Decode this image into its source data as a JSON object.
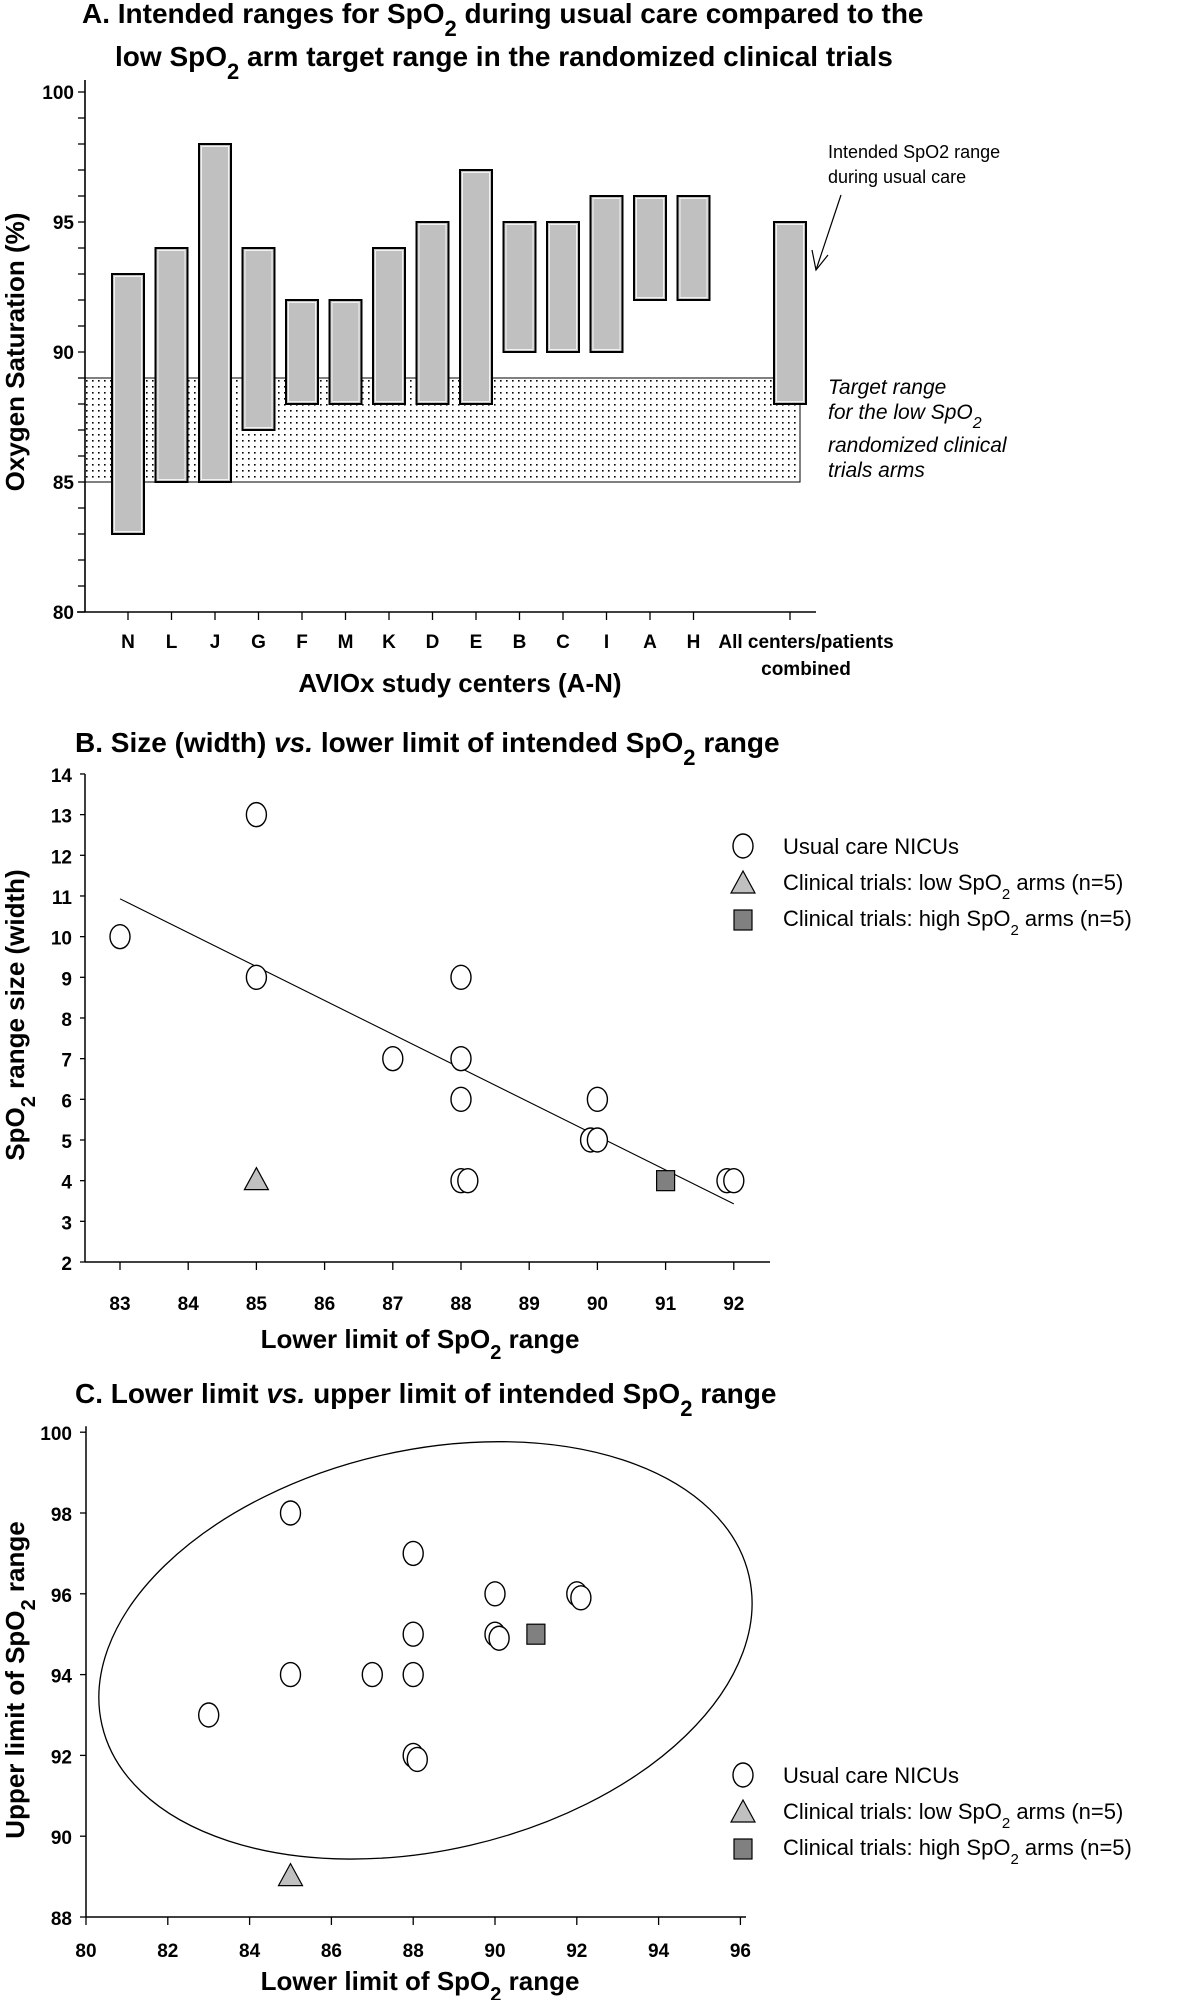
{
  "chart_data": [
    {
      "type": "bar",
      "subtype": "floating-range",
      "title_line1": "A. Intended ranges for SpO2 during usual care compared to the",
      "title_line2": "low SpO2 arm target range in the randomized clinical trials",
      "xlabel": "AVIOx study centers (A-N)",
      "ylabel": "Oxygen Saturation (%)",
      "ylim": [
        80,
        100
      ],
      "yticks_major": [
        80,
        85,
        90,
        95,
        100
      ],
      "yticks_minor_step": 1,
      "categories": [
        "N",
        "L",
        "J",
        "G",
        "F",
        "M",
        "K",
        "D",
        "E",
        "B",
        "C",
        "I",
        "A",
        "H",
        "All centers/patients combined"
      ],
      "category_label_last_line1": "All centers/patients",
      "category_label_last_line2": "combined",
      "ranges": [
        {
          "center": "N",
          "low": 83,
          "high": 93
        },
        {
          "center": "L",
          "low": 85,
          "high": 94
        },
        {
          "center": "J",
          "low": 85,
          "high": 98
        },
        {
          "center": "G",
          "low": 87,
          "high": 94
        },
        {
          "center": "F",
          "low": 88,
          "high": 92
        },
        {
          "center": "M",
          "low": 88,
          "high": 92
        },
        {
          "center": "K",
          "low": 88,
          "high": 94
        },
        {
          "center": "D",
          "low": 88,
          "high": 95
        },
        {
          "center": "E",
          "low": 88,
          "high": 97
        },
        {
          "center": "B",
          "low": 90,
          "high": 95
        },
        {
          "center": "C",
          "low": 90,
          "high": 95
        },
        {
          "center": "I",
          "low": 90,
          "high": 96
        },
        {
          "center": "A",
          "low": 92,
          "high": 96
        },
        {
          "center": "H",
          "low": 92,
          "high": 96
        },
        {
          "center": "All centers/patients combined",
          "low": 88,
          "high": 95
        }
      ],
      "target_band": {
        "low": 85,
        "high": 89
      },
      "annotations": {
        "usual_care_line1": "Intended SpO2 range",
        "usual_care_line2": "during usual care",
        "target_line1": "Target range",
        "target_line2": "for the low SpO2",
        "target_line3": "randomized clinical",
        "target_line4": "trials arms"
      },
      "colors": {
        "bar_fill": "#c0c0c0",
        "bar_stroke": "#000000"
      }
    },
    {
      "type": "scatter",
      "title": "B. Size (width) vs. lower limit of intended SpO2 range",
      "title_parts": [
        "B. Size (width) ",
        "vs.",
        " lower limit of intended SpO",
        "2",
        " range"
      ],
      "xlabel": "Lower limit of SpO2 range",
      "ylabel": "SpO2 range size (width)",
      "xlim": [
        82.5,
        93.1
      ],
      "ylim": [
        2,
        14
      ],
      "xticks": [
        83,
        84,
        85,
        86,
        87,
        88,
        89,
        90,
        91,
        92
      ],
      "yticks": [
        2,
        3,
        4,
        5,
        6,
        7,
        8,
        9,
        10,
        11,
        12,
        13,
        14
      ],
      "series": [
        {
          "name": "Usual care NICUs",
          "marker": "circle",
          "points": [
            [
              83,
              10
            ],
            [
              85,
              13
            ],
            [
              85,
              9
            ],
            [
              87,
              7
            ],
            [
              88,
              9
            ],
            [
              88,
              7
            ],
            [
              88,
              6
            ],
            [
              88,
              4
            ],
            [
              88.1,
              4
            ],
            [
              89.9,
              5
            ],
            [
              90,
              5
            ],
            [
              90,
              6
            ],
            [
              91.9,
              4
            ],
            [
              92,
              4
            ]
          ]
        },
        {
          "name": "Clinical trials: low SpO2 arms (n=5)",
          "marker": "triangle",
          "points": [
            [
              85,
              4
            ]
          ]
        },
        {
          "name": "Clinical trials: high SpO2 arms (n=5)",
          "marker": "square",
          "points": [
            [
              91,
              4
            ]
          ]
        }
      ],
      "trendline": {
        "x": [
          83,
          92
        ],
        "y": [
          10.93,
          3.43
        ]
      },
      "legend": {
        "placement": "right",
        "items": [
          {
            "label": "Usual care NICUs",
            "marker": "circle"
          },
          {
            "label": "Clinical trials: low SpO2 arms (n=5)",
            "marker": "triangle"
          },
          {
            "label": "Clinical trials: high SpO2 arms (n=5)",
            "marker": "square"
          }
        ]
      },
      "colors": {
        "triangle": "#c0c0c0",
        "square": "#808080"
      }
    },
    {
      "type": "scatter",
      "title": "C. Lower limit vs. upper limit of intended SpO2 range",
      "xlabel": "Lower limit of SpO2 range",
      "ylabel": "Upper limit of SpO2 range",
      "xlim": [
        80,
        96
      ],
      "ylim": [
        88,
        100
      ],
      "xticks": [
        80,
        82,
        84,
        86,
        88,
        90,
        92,
        94,
        96
      ],
      "yticks": [
        88,
        90,
        92,
        94,
        96,
        98,
        100
      ],
      "series": [
        {
          "name": "Usual care NICUs",
          "marker": "circle",
          "points": [
            [
              83,
              93
            ],
            [
              85,
              98
            ],
            [
              85,
              94
            ],
            [
              87,
              94
            ],
            [
              88,
              97
            ],
            [
              88,
              95
            ],
            [
              88,
              94
            ],
            [
              88,
              92
            ],
            [
              88.1,
              91.9
            ],
            [
              90,
              96
            ],
            [
              90,
              95
            ],
            [
              90.1,
              94.9
            ],
            [
              92,
              96
            ],
            [
              92.1,
              95.9
            ]
          ]
        },
        {
          "name": "Clinical trials: low SpO2 arms (n=5)",
          "marker": "triangle",
          "points": [
            [
              85,
              89
            ]
          ]
        },
        {
          "name": "Clinical trials: high SpO2 arms (n=5)",
          "marker": "square",
          "points": [
            [
              91,
              95
            ]
          ]
        }
      ],
      "ellipse": {
        "center": [
          88.3,
          94.8
        ],
        "description": "confidence ellipse"
      },
      "legend": {
        "placement": "bottom-right",
        "items": [
          {
            "label": "Usual care NICUs",
            "marker": "circle"
          },
          {
            "label": "Clinical trials: low SpO2 arms (n=5)",
            "marker": "triangle"
          },
          {
            "label": "Clinical trials: high SpO2 arms (n=5)",
            "marker": "square"
          }
        ]
      }
    }
  ]
}
